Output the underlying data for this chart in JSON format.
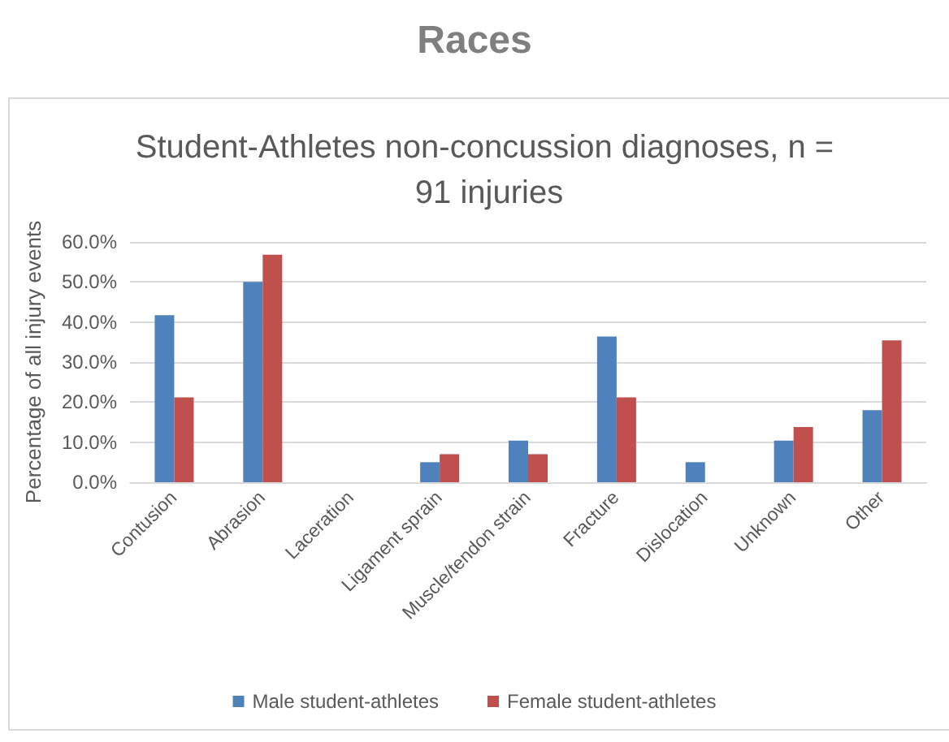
{
  "chart_data": {
    "type": "bar",
    "title": "Races",
    "subtitle": "Student-Athletes non-concussion diagnoses, n = 91 injuries",
    "ylabel": "Percentage of all injury events",
    "categories": [
      "Contusion",
      "Abrasion",
      "Laceration",
      "Ligament sprain",
      "Muscle/tendon strain",
      "Fracture",
      "Dislocation",
      "Unknown",
      "Other"
    ],
    "series": [
      {
        "name": "Male student-athletes",
        "color": "#4f81bd",
        "values": [
          41.7,
          50.0,
          0,
          5.0,
          10.4,
          36.4,
          5.0,
          10.4,
          18.0
        ]
      },
      {
        "name": "Female student-athletes",
        "color": "#c0504d",
        "values": [
          21.2,
          56.8,
          0,
          7.0,
          7.0,
          21.2,
          0,
          13.8,
          35.4
        ]
      }
    ],
    "ylim": [
      0,
      60
    ],
    "yticks": [
      {
        "value": 0,
        "label": "0.0%"
      },
      {
        "value": 10,
        "label": "10.0%"
      },
      {
        "value": 20,
        "label": "20.0%"
      },
      {
        "value": 30,
        "label": "30.0%"
      },
      {
        "value": 40,
        "label": "40.0%"
      },
      {
        "value": 50,
        "label": "50.0%"
      },
      {
        "value": 60,
        "label": "60.0%"
      }
    ],
    "grid": "y",
    "legend": "bottom"
  }
}
